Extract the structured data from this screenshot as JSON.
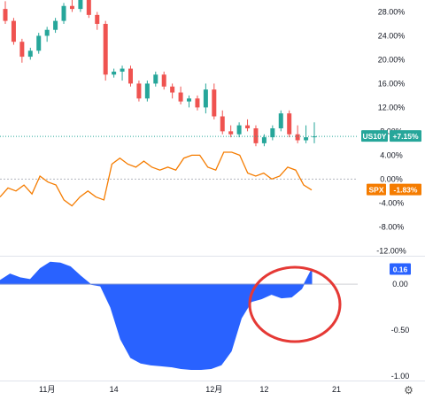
{
  "chart_data": [
    {
      "type": "candlestick",
      "pane": "main",
      "yunit": "%",
      "ylim": [
        -13,
        30
      ],
      "y_ticks": [
        "28.00%",
        "24.00%",
        "20.00%",
        "16.00%",
        "12.00%",
        "8.00%",
        "4.00%",
        "0.00%",
        "-4.00%",
        "-8.00%",
        "-12.00%"
      ],
      "y_tick_values": [
        28,
        24,
        20,
        16,
        12,
        8,
        4,
        0,
        -4,
        -8,
        -12
      ],
      "x_ticks": [
        "11月",
        "14",
        "12月",
        "12",
        "21"
      ],
      "x_tick_positions": [
        5,
        13,
        25,
        31,
        37
      ],
      "series": [
        {
          "name": "US10Y",
          "label": "US10Y",
          "value_label": "+7.15%",
          "color_up": "#26a69a",
          "color_down": "#ef5350",
          "ohlc": [
            [
              28.5,
              29.8,
              26.0,
              26.5
            ],
            [
              26.5,
              27.0,
              22.5,
              23.0
            ],
            [
              23.0,
              23.5,
              19.5,
              20.5
            ],
            [
              20.5,
              22.0,
              20.0,
              21.5
            ],
            [
              21.5,
              24.5,
              21.0,
              24.0
            ],
            [
              24.0,
              25.5,
              23.0,
              25.0
            ],
            [
              25.0,
              27.0,
              24.5,
              26.5
            ],
            [
              26.5,
              29.5,
              26.0,
              29.0
            ],
            [
              29.0,
              30.0,
              28.0,
              28.5
            ],
            [
              28.5,
              30.5,
              28.0,
              30.0
            ],
            [
              30.0,
              30.5,
              27.0,
              27.5
            ],
            [
              27.5,
              28.0,
              25.0,
              26.0
            ],
            [
              26.0,
              26.5,
              16.5,
              17.5
            ],
            [
              17.5,
              18.5,
              17.0,
              18.0
            ],
            [
              18.0,
              19.0,
              16.5,
              18.5
            ],
            [
              18.5,
              19.0,
              15.5,
              16.0
            ],
            [
              16.0,
              16.5,
              13.0,
              13.5
            ],
            [
              13.5,
              16.5,
              13.0,
              16.0
            ],
            [
              16.0,
              18.0,
              15.5,
              17.5
            ],
            [
              17.5,
              18.0,
              15.0,
              15.5
            ],
            [
              15.5,
              16.0,
              13.5,
              14.5
            ],
            [
              14.5,
              15.5,
              12.5,
              13.0
            ],
            [
              13.0,
              14.0,
              12.0,
              13.5
            ],
            [
              13.5,
              14.0,
              11.5,
              12.0
            ],
            [
              12.0,
              16.0,
              11.0,
              15.0
            ],
            [
              15.0,
              16.0,
              10.0,
              10.5
            ],
            [
              10.5,
              11.5,
              7.5,
              8.0
            ],
            [
              8.0,
              9.0,
              7.0,
              7.5
            ],
            [
              7.5,
              9.5,
              7.0,
              9.0
            ],
            [
              9.0,
              10.0,
              8.0,
              8.5
            ],
            [
              8.5,
              9.0,
              5.5,
              6.0
            ],
            [
              6.0,
              7.5,
              5.5,
              7.0
            ],
            [
              7.0,
              9.0,
              6.5,
              8.5
            ],
            [
              8.5,
              11.5,
              8.0,
              11.0
            ],
            [
              11.0,
              11.5,
              7.0,
              7.5
            ],
            [
              7.5,
              9.0,
              6.0,
              6.5
            ],
            [
              6.5,
              9.0,
              6.0,
              7.0
            ],
            [
              7.0,
              9.5,
              6.0,
              7.15
            ]
          ]
        },
        {
          "name": "SPX",
          "label": "SPX",
          "value_label": "-1.83%",
          "color": "#f57c00",
          "type": "line",
          "values": [
            -3.0,
            -1.5,
            -2.0,
            -1.0,
            -2.5,
            0.5,
            -0.5,
            -1.0,
            -3.5,
            -4.5,
            -3.0,
            -2.0,
            -3.0,
            -3.5,
            2.5,
            3.5,
            2.5,
            2.0,
            3.0,
            2.0,
            1.5,
            2.0,
            1.5,
            3.5,
            4.0,
            4.0,
            2.0,
            1.5,
            4.5,
            4.5,
            4.0,
            1.0,
            0.5,
            1.0,
            0.0,
            0.5,
            2.0,
            1.5,
            -1.0,
            -1.83
          ]
        }
      ]
    },
    {
      "type": "area",
      "pane": "indicator",
      "ylim": [
        -1.05,
        0.3
      ],
      "y_ticks": [
        "0.00",
        "-0.50",
        "-1.00"
      ],
      "y_tick_values": [
        0,
        -0.5,
        -1.0
      ],
      "value_label": "0.16",
      "color": "#2962ff",
      "values": [
        0.04,
        0.11,
        0.07,
        0.05,
        0.17,
        0.24,
        0.23,
        0.19,
        0.09,
        0.0,
        -0.02,
        -0.25,
        -0.6,
        -0.8,
        -0.86,
        -0.88,
        -0.89,
        -0.9,
        -0.92,
        -0.93,
        -0.93,
        -0.92,
        -0.88,
        -0.73,
        -0.37,
        -0.19,
        -0.16,
        -0.11,
        -0.15,
        -0.14,
        -0.05,
        0.16
      ]
    }
  ],
  "annotation": {
    "shape": "ellipse",
    "color": "#e53935"
  },
  "settings_icon": "gear-icon"
}
